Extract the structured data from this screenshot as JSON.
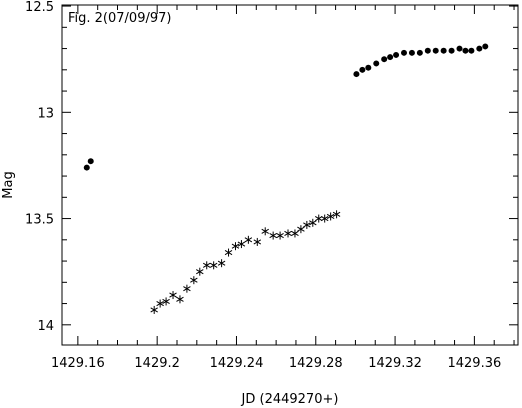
{
  "chart_data": {
    "type": "scatter",
    "title": "Fig. 2(07/09/97)",
    "xlabel": "JD (2449270+)",
    "ylabel": "Mag",
    "xlim": [
      1429.152,
      1429.382
    ],
    "ylim": [
      12.495,
      14.095
    ],
    "y_inverted": true,
    "xticks": [
      1429.16,
      1429.2,
      1429.24,
      1429.28,
      1429.32,
      1429.36
    ],
    "xtick_labels": [
      "1429.16",
      "1429.2",
      "1429.24",
      "1429.28",
      "1429.32",
      "1429.36"
    ],
    "yticks": [
      12.5,
      13,
      13.5,
      14
    ],
    "ytick_labels": [
      "12.5",
      "13",
      "13.5",
      "14"
    ],
    "grid": false,
    "series": [
      {
        "marker": "dot",
        "x": [
          1429.1645,
          1429.1665
        ],
        "y": [
          13.26,
          13.23
        ]
      },
      {
        "marker": "star",
        "x": [
          1429.1985,
          1429.2015,
          1429.2045,
          1429.208,
          1429.2115,
          1429.215,
          1429.2185,
          1429.2215,
          1429.225,
          1429.2285,
          1429.2325,
          1429.236,
          1429.2395,
          1429.2425,
          1429.246,
          1429.2505,
          1429.2545,
          1429.2585,
          1429.262,
          1429.266,
          1429.2695,
          1429.2725,
          1429.2755,
          1429.2785,
          1429.2815,
          1429.2845,
          1429.2875,
          1429.2905
        ],
        "y": [
          13.93,
          13.9,
          13.89,
          13.86,
          13.88,
          13.83,
          13.79,
          13.75,
          13.72,
          13.72,
          13.71,
          13.66,
          13.63,
          13.62,
          13.6,
          13.61,
          13.56,
          13.58,
          13.58,
          13.57,
          13.57,
          13.55,
          13.53,
          13.52,
          13.5,
          13.5,
          13.49,
          13.48
        ]
      },
      {
        "marker": "dot",
        "x": [
          1429.3005,
          1429.3035,
          1429.3065,
          1429.3105,
          1429.3145,
          1429.3175,
          1429.3205,
          1429.3245,
          1429.3285,
          1429.3325,
          1429.3365,
          1429.3405,
          1429.3445,
          1429.3485,
          1429.3525,
          1429.3555,
          1429.3585,
          1429.3625,
          1429.3655
        ],
        "y": [
          12.82,
          12.8,
          12.79,
          12.77,
          12.75,
          12.74,
          12.73,
          12.72,
          12.72,
          12.72,
          12.71,
          12.71,
          12.71,
          12.71,
          12.7,
          12.71,
          12.71,
          12.7,
          12.69
        ]
      }
    ]
  }
}
